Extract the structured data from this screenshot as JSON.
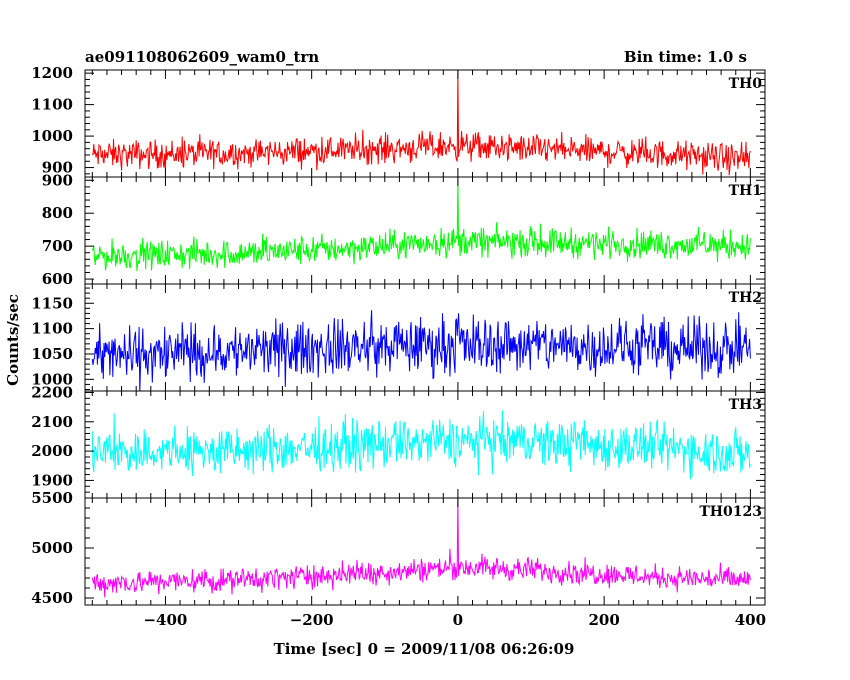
{
  "header": {
    "title": "ae091108062609_wam0_trn",
    "bin_time": "Bin time: 1.0 s"
  },
  "chart_data": {
    "type": "line",
    "title": "ae091108062609_wam0_trn",
    "bin_time": "Bin time: 1.0 s",
    "xlabel": "Time [sec] 0 = 2009/11/08 06:26:09",
    "ylabel": "Counts/sec",
    "xlim": [
      -510,
      420
    ],
    "x_ticks": [
      -400,
      -200,
      0,
      200,
      400
    ],
    "x_tick_labels": [
      "−400",
      "−200",
      "0",
      "200",
      "400"
    ],
    "x_range": [
      -500,
      400
    ],
    "bin_seconds": 1.0,
    "grid": false,
    "series": [
      {
        "name": "TH0",
        "color": "#ff0000",
        "ylim": [
          870,
          1210
        ],
        "y_ticks": [
          900,
          1000,
          1100,
          1200
        ],
        "y_tick_labels": [
          "900",
          "1000",
          "1100",
          "1200"
        ],
        "baseline": [
          [
            -500,
            940
          ],
          [
            -300,
            945
          ],
          [
            -100,
            960
          ],
          [
            0,
            968
          ],
          [
            100,
            960
          ],
          [
            300,
            940
          ],
          [
            400,
            925
          ]
        ],
        "noise_amplitude": 50,
        "spikes": [
          {
            "x": 0,
            "y": 1210
          }
        ]
      },
      {
        "name": "TH1",
        "color": "#00ff00",
        "ylim": [
          585,
          910
        ],
        "y_ticks": [
          600,
          700,
          800,
          900
        ],
        "y_tick_labels": [
          "600",
          "700",
          "800",
          "900"
        ],
        "baseline": [
          [
            -500,
            670
          ],
          [
            -300,
            678
          ],
          [
            -100,
            700
          ],
          [
            0,
            715
          ],
          [
            100,
            712
          ],
          [
            300,
            705
          ],
          [
            400,
            700
          ]
        ],
        "noise_amplitude": 48,
        "spikes": [
          {
            "x": 0,
            "y": 910
          }
        ]
      },
      {
        "name": "TH2",
        "color": "#0000ff",
        "ylim": [
          977,
          1188
        ],
        "y_ticks": [
          1000,
          1050,
          1100,
          1150
        ],
        "y_tick_labels": [
          "1000",
          "1050",
          "1100",
          "1150"
        ],
        "baseline": [
          [
            -500,
            1045
          ],
          [
            -300,
            1055
          ],
          [
            -100,
            1065
          ],
          [
            0,
            1070
          ],
          [
            100,
            1068
          ],
          [
            300,
            1062
          ],
          [
            400,
            1060
          ]
        ],
        "noise_amplitude": 60,
        "spikes": []
      },
      {
        "name": "TH3",
        "color": "#00ffff",
        "ylim": [
          1840,
          2205
        ],
        "y_ticks": [
          1900,
          2000,
          2100,
          2200
        ],
        "y_tick_labels": [
          "1900",
          "2000",
          "2100",
          "2200"
        ],
        "baseline": [
          [
            -500,
            1995
          ],
          [
            -300,
            2000
          ],
          [
            -100,
            2025
          ],
          [
            0,
            2035
          ],
          [
            100,
            2030
          ],
          [
            300,
            2010
          ],
          [
            400,
            1990
          ]
        ],
        "noise_amplitude": 90,
        "spikes": []
      },
      {
        "name": "TH0123",
        "color": "#ff00ff",
        "ylim": [
          4430,
          5500
        ],
        "y_ticks": [
          4500,
          5000,
          5500
        ],
        "y_tick_labels": [
          "4500",
          "5000",
          "5500"
        ],
        "baseline": [
          [
            -500,
            4650
          ],
          [
            -300,
            4680
          ],
          [
            -100,
            4760
          ],
          [
            0,
            4810
          ],
          [
            100,
            4780
          ],
          [
            300,
            4700
          ],
          [
            400,
            4680
          ]
        ],
        "noise_amplitude": 130,
        "spikes": [
          {
            "x": 0,
            "y": 5500
          }
        ]
      }
    ]
  }
}
